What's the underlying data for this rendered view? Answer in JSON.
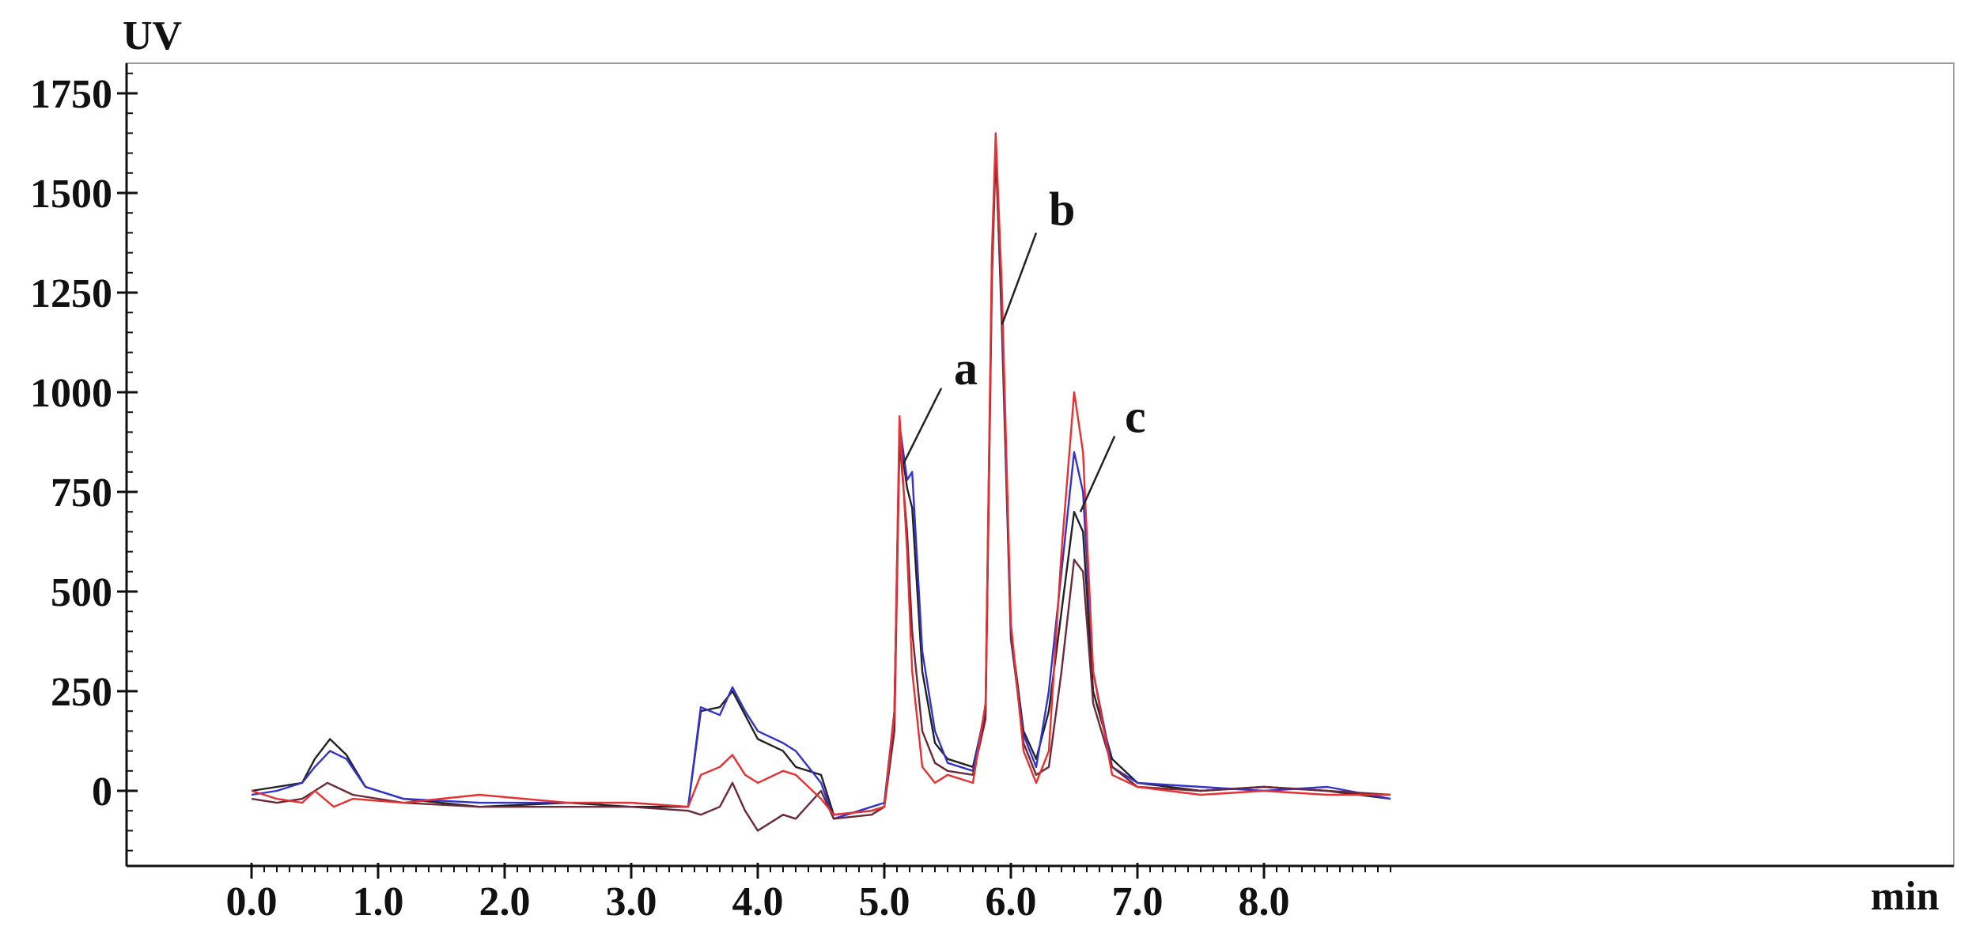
{
  "chart_data": {
    "type": "line",
    "title": "",
    "ylabel": "UV",
    "xlabel": "min",
    "xlim": [
      0.0,
      9.0
    ],
    "ylim": [
      -200,
      1800
    ],
    "x_ticks": [
      0.0,
      1.0,
      2.0,
      3.0,
      4.0,
      5.0,
      6.0,
      7.0,
      8.0
    ],
    "x_tick_labels": [
      "0.0",
      "1.0",
      "2.0",
      "3.0",
      "4.0",
      "5.0",
      "6.0",
      "7.0",
      "8.0"
    ],
    "y_ticks": [
      0,
      250,
      500,
      750,
      1000,
      1250,
      1500,
      1750
    ],
    "y_tick_labels": [
      "0",
      "250",
      "500",
      "750",
      "1000",
      "1250",
      "1500",
      "1750"
    ],
    "grid": false,
    "legend": "none",
    "series": [
      {
        "color": "#222222",
        "points": [
          [
            0.0,
            0
          ],
          [
            0.2,
            10
          ],
          [
            0.4,
            20
          ],
          [
            0.5,
            80
          ],
          [
            0.62,
            130
          ],
          [
            0.75,
            90
          ],
          [
            0.9,
            10
          ],
          [
            1.2,
            -20
          ],
          [
            1.8,
            -40
          ],
          [
            2.5,
            -30
          ],
          [
            3.0,
            -40
          ],
          [
            3.45,
            -40
          ],
          [
            3.55,
            200
          ],
          [
            3.7,
            210
          ],
          [
            3.8,
            250
          ],
          [
            3.9,
            190
          ],
          [
            4.0,
            130
          ],
          [
            4.2,
            100
          ],
          [
            4.3,
            60
          ],
          [
            4.5,
            40
          ],
          [
            4.6,
            -60
          ],
          [
            4.9,
            -50
          ],
          [
            5.0,
            -40
          ],
          [
            5.08,
            200
          ],
          [
            5.12,
            900
          ],
          [
            5.18,
            760
          ],
          [
            5.22,
            710
          ],
          [
            5.3,
            300
          ],
          [
            5.4,
            120
          ],
          [
            5.5,
            80
          ],
          [
            5.7,
            60
          ],
          [
            5.8,
            200
          ],
          [
            5.85,
            1300
          ],
          [
            5.88,
            1620
          ],
          [
            5.93,
            1200
          ],
          [
            6.0,
            400
          ],
          [
            6.1,
            150
          ],
          [
            6.2,
            80
          ],
          [
            6.3,
            200
          ],
          [
            6.4,
            450
          ],
          [
            6.5,
            700
          ],
          [
            6.57,
            650
          ],
          [
            6.65,
            250
          ],
          [
            6.8,
            80
          ],
          [
            7.0,
            20
          ],
          [
            7.5,
            0
          ],
          [
            8.0,
            10
          ],
          [
            8.5,
            0
          ],
          [
            9.0,
            -20
          ]
        ]
      },
      {
        "color": "#3333cc",
        "points": [
          [
            0.0,
            -10
          ],
          [
            0.2,
            0
          ],
          [
            0.4,
            20
          ],
          [
            0.5,
            60
          ],
          [
            0.62,
            100
          ],
          [
            0.75,
            80
          ],
          [
            0.9,
            10
          ],
          [
            1.2,
            -20
          ],
          [
            1.8,
            -30
          ],
          [
            2.5,
            -30
          ],
          [
            3.0,
            -30
          ],
          [
            3.45,
            -40
          ],
          [
            3.55,
            210
          ],
          [
            3.7,
            190
          ],
          [
            3.8,
            260
          ],
          [
            3.9,
            200
          ],
          [
            4.0,
            150
          ],
          [
            4.2,
            120
          ],
          [
            4.3,
            100
          ],
          [
            4.5,
            20
          ],
          [
            4.6,
            -70
          ],
          [
            4.9,
            -40
          ],
          [
            5.0,
            -30
          ],
          [
            5.08,
            200
          ],
          [
            5.12,
            920
          ],
          [
            5.18,
            780
          ],
          [
            5.22,
            800
          ],
          [
            5.3,
            350
          ],
          [
            5.4,
            150
          ],
          [
            5.5,
            70
          ],
          [
            5.7,
            50
          ],
          [
            5.8,
            210
          ],
          [
            5.85,
            1320
          ],
          [
            5.88,
            1630
          ],
          [
            5.93,
            1150
          ],
          [
            6.0,
            380
          ],
          [
            6.1,
            140
          ],
          [
            6.2,
            60
          ],
          [
            6.3,
            250
          ],
          [
            6.4,
            550
          ],
          [
            6.5,
            850
          ],
          [
            6.57,
            750
          ],
          [
            6.65,
            300
          ],
          [
            6.8,
            60
          ],
          [
            7.0,
            20
          ],
          [
            7.5,
            10
          ],
          [
            8.0,
            0
          ],
          [
            8.5,
            10
          ],
          [
            9.0,
            -20
          ]
        ]
      },
      {
        "color": "#6a2a3a",
        "points": [
          [
            0.0,
            -20
          ],
          [
            0.2,
            -30
          ],
          [
            0.4,
            -20
          ],
          [
            0.6,
            20
          ],
          [
            0.8,
            -10
          ],
          [
            1.2,
            -30
          ],
          [
            1.8,
            -40
          ],
          [
            2.5,
            -40
          ],
          [
            3.0,
            -40
          ],
          [
            3.45,
            -50
          ],
          [
            3.55,
            -60
          ],
          [
            3.7,
            -40
          ],
          [
            3.8,
            20
          ],
          [
            3.9,
            -50
          ],
          [
            4.0,
            -100
          ],
          [
            4.2,
            -60
          ],
          [
            4.3,
            -70
          ],
          [
            4.5,
            0
          ],
          [
            4.6,
            -70
          ],
          [
            4.9,
            -60
          ],
          [
            5.0,
            -40
          ],
          [
            5.08,
            150
          ],
          [
            5.12,
            880
          ],
          [
            5.18,
            650
          ],
          [
            5.22,
            400
          ],
          [
            5.3,
            150
          ],
          [
            5.4,
            70
          ],
          [
            5.5,
            50
          ],
          [
            5.7,
            40
          ],
          [
            5.8,
            180
          ],
          [
            5.85,
            1280
          ],
          [
            5.88,
            1600
          ],
          [
            5.93,
            1180
          ],
          [
            6.0,
            390
          ],
          [
            6.1,
            120
          ],
          [
            6.2,
            40
          ],
          [
            6.3,
            60
          ],
          [
            6.4,
            300
          ],
          [
            6.5,
            580
          ],
          [
            6.57,
            550
          ],
          [
            6.65,
            220
          ],
          [
            6.8,
            60
          ],
          [
            7.0,
            10
          ],
          [
            7.5,
            0
          ],
          [
            8.0,
            10
          ],
          [
            8.5,
            0
          ],
          [
            9.0,
            -10
          ]
        ]
      },
      {
        "color": "#e83030",
        "points": [
          [
            0.0,
            0
          ],
          [
            0.2,
            -20
          ],
          [
            0.4,
            -30
          ],
          [
            0.5,
            0
          ],
          [
            0.65,
            -40
          ],
          [
            0.8,
            -20
          ],
          [
            1.2,
            -30
          ],
          [
            1.8,
            -10
          ],
          [
            2.5,
            -30
          ],
          [
            3.0,
            -30
          ],
          [
            3.45,
            -40
          ],
          [
            3.55,
            40
          ],
          [
            3.7,
            60
          ],
          [
            3.8,
            90
          ],
          [
            3.9,
            40
          ],
          [
            4.0,
            20
          ],
          [
            4.2,
            50
          ],
          [
            4.3,
            40
          ],
          [
            4.5,
            -20
          ],
          [
            4.6,
            -60
          ],
          [
            4.9,
            -50
          ],
          [
            5.0,
            -40
          ],
          [
            5.08,
            200
          ],
          [
            5.12,
            940
          ],
          [
            5.18,
            600
          ],
          [
            5.22,
            300
          ],
          [
            5.3,
            60
          ],
          [
            5.4,
            20
          ],
          [
            5.5,
            40
          ],
          [
            5.7,
            20
          ],
          [
            5.8,
            220
          ],
          [
            5.85,
            1350
          ],
          [
            5.88,
            1650
          ],
          [
            5.93,
            1250
          ],
          [
            6.0,
            420
          ],
          [
            6.1,
            100
          ],
          [
            6.2,
            20
          ],
          [
            6.3,
            100
          ],
          [
            6.4,
            600
          ],
          [
            6.5,
            1000
          ],
          [
            6.57,
            850
          ],
          [
            6.65,
            300
          ],
          [
            6.8,
            40
          ],
          [
            7.0,
            10
          ],
          [
            7.5,
            -10
          ],
          [
            8.0,
            0
          ],
          [
            8.5,
            -10
          ],
          [
            9.0,
            -10
          ]
        ]
      }
    ],
    "annotations": [
      {
        "label": "a",
        "line_from": [
          5.15,
          820
        ],
        "line_to": [
          5.45,
          1010
        ],
        "text_at": [
          5.55,
          1020
        ]
      },
      {
        "label": "b",
        "line_from": [
          5.93,
          1170
        ],
        "line_to": [
          6.2,
          1400
        ],
        "text_at": [
          6.3,
          1420
        ]
      },
      {
        "label": "c",
        "line_from": [
          6.55,
          700
        ],
        "line_to": [
          6.82,
          890
        ],
        "text_at": [
          6.9,
          900
        ]
      }
    ]
  }
}
